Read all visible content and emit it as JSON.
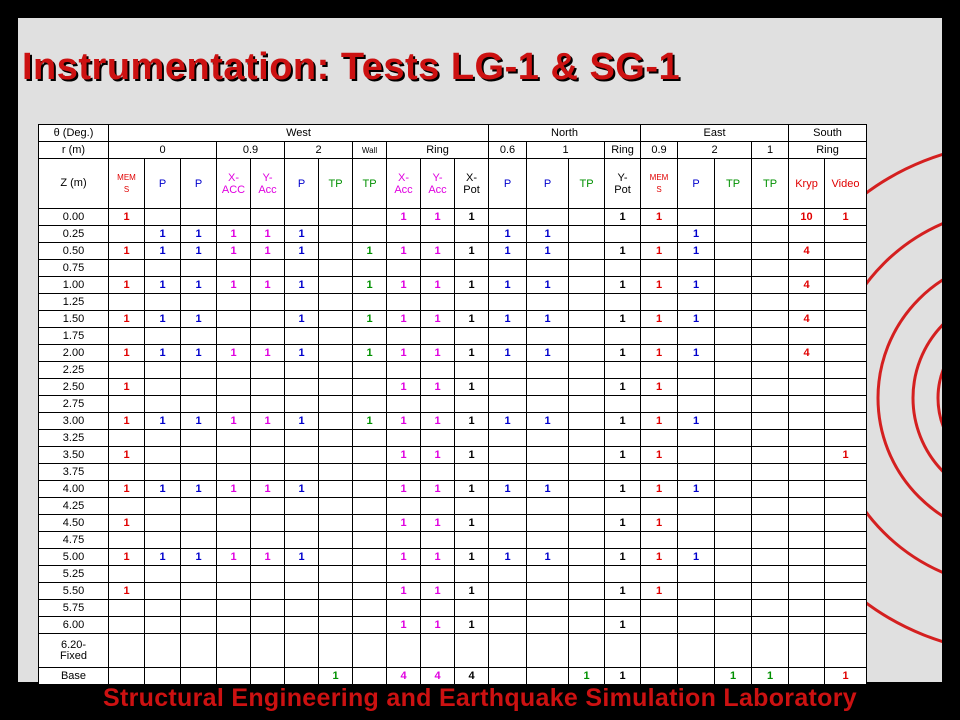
{
  "title": "Instrumentation: Tests LG-1 & SG-1",
  "footer": "Structural Engineering and Earthquake Simulation Laboratory",
  "colors": {
    "red": "#e00000",
    "blue": "#0000cc",
    "magenta": "#e000e0",
    "green": "#009000",
    "black": "#000000"
  },
  "header": {
    "theta_label": "θ (Deg.)",
    "theta_groups": [
      "West",
      "North",
      "East",
      "South"
    ],
    "r_label": "r (m)",
    "r_values": [
      "0",
      "0.9",
      "2",
      "Wall",
      "Ring",
      "0.6",
      "1",
      "Ring",
      "0.9",
      "2",
      "1",
      "Ring"
    ],
    "z_label": "Z (m)",
    "instruments": [
      {
        "t": "MEM\nS",
        "c": "red"
      },
      {
        "t": "P",
        "c": "blue"
      },
      {
        "t": "P",
        "c": "blue"
      },
      {
        "t": "X-\nACC",
        "c": "mag"
      },
      {
        "t": "Y-\nAcc",
        "c": "mag"
      },
      {
        "t": "P",
        "c": "blue"
      },
      {
        "t": "TP",
        "c": "grn"
      },
      {
        "t": "TP",
        "c": "grn"
      },
      {
        "t": "X-\nAcc",
        "c": "mag"
      },
      {
        "t": "Y-\nAcc",
        "c": "mag"
      },
      {
        "t": "X-\nPot",
        "c": "blk"
      },
      {
        "t": "P",
        "c": "blue"
      },
      {
        "t": "P",
        "c": "blue"
      },
      {
        "t": "TP",
        "c": "grn"
      },
      {
        "t": "Y-\nPot",
        "c": "blk"
      },
      {
        "t": "MEM\nS",
        "c": "red"
      },
      {
        "t": "P",
        "c": "blue"
      },
      {
        "t": "TP",
        "c": "grn"
      },
      {
        "t": "TP",
        "c": "grn"
      },
      {
        "t": "Kryp",
        "c": "red"
      },
      {
        "t": "Video",
        "c": "red"
      }
    ]
  },
  "rows": [
    {
      "z": "0.00",
      "v": [
        "1",
        "",
        "",
        "",
        "",
        "",
        "",
        "",
        "1",
        "1",
        "1",
        "",
        "",
        "",
        "1",
        "1",
        "",
        "",
        "",
        "10",
        "1"
      ]
    },
    {
      "z": "0.25",
      "v": [
        "",
        "1",
        "1",
        "1",
        "1",
        "1",
        "",
        "",
        "",
        "",
        "",
        "1",
        "1",
        "",
        "",
        "",
        "1",
        "",
        "",
        "",
        ""
      ]
    },
    {
      "z": "0.50",
      "v": [
        "1",
        "1",
        "1",
        "1",
        "1",
        "1",
        "",
        "1",
        "1",
        "1",
        "1",
        "1",
        "1",
        "",
        "1",
        "1",
        "1",
        "",
        "",
        "4",
        ""
      ]
    },
    {
      "z": "0.75",
      "v": [
        "",
        "",
        "",
        "",
        "",
        "",
        "",
        "",
        "",
        "",
        "",
        "",
        "",
        "",
        "",
        "",
        "",
        "",
        "",
        "",
        ""
      ]
    },
    {
      "z": "1.00",
      "v": [
        "1",
        "1",
        "1",
        "1",
        "1",
        "1",
        "",
        "1",
        "1",
        "1",
        "1",
        "1",
        "1",
        "",
        "1",
        "1",
        "1",
        "",
        "",
        "4",
        ""
      ]
    },
    {
      "z": "1.25",
      "v": [
        "",
        "",
        "",
        "",
        "",
        "",
        "",
        "",
        "",
        "",
        "",
        "",
        "",
        "",
        "",
        "",
        "",
        "",
        "",
        "",
        ""
      ]
    },
    {
      "z": "1.50",
      "v": [
        "1",
        "1",
        "1",
        "",
        "",
        "1",
        "",
        "1",
        "1",
        "1",
        "1",
        "1",
        "1",
        "",
        "1",
        "1",
        "1",
        "",
        "",
        "4",
        ""
      ]
    },
    {
      "z": "1.75",
      "v": [
        "",
        "",
        "",
        "",
        "",
        "",
        "",
        "",
        "",
        "",
        "",
        "",
        "",
        "",
        "",
        "",
        "",
        "",
        "",
        "",
        ""
      ]
    },
    {
      "z": "2.00",
      "v": [
        "1",
        "1",
        "1",
        "1",
        "1",
        "1",
        "",
        "1",
        "1",
        "1",
        "1",
        "1",
        "1",
        "",
        "1",
        "1",
        "1",
        "",
        "",
        "4",
        ""
      ]
    },
    {
      "z": "2.25",
      "v": [
        "",
        "",
        "",
        "",
        "",
        "",
        "",
        "",
        "",
        "",
        "",
        "",
        "",
        "",
        "",
        "",
        "",
        "",
        "",
        "",
        ""
      ]
    },
    {
      "z": "2.50",
      "v": [
        "1",
        "",
        "",
        "",
        "",
        "",
        "",
        "",
        "1",
        "1",
        "1",
        "",
        "",
        "",
        "1",
        "1",
        "",
        "",
        "",
        "",
        ""
      ]
    },
    {
      "z": "2.75",
      "v": [
        "",
        "",
        "",
        "",
        "",
        "",
        "",
        "",
        "",
        "",
        "",
        "",
        "",
        "",
        "",
        "",
        "",
        "",
        "",
        "",
        ""
      ]
    },
    {
      "z": "3.00",
      "v": [
        "1",
        "1",
        "1",
        "1",
        "1",
        "1",
        "",
        "1",
        "1",
        "1",
        "1",
        "1",
        "1",
        "",
        "1",
        "1",
        "1",
        "",
        "",
        "",
        ""
      ]
    },
    {
      "z": "3.25",
      "v": [
        "",
        "",
        "",
        "",
        "",
        "",
        "",
        "",
        "",
        "",
        "",
        "",
        "",
        "",
        "",
        "",
        "",
        "",
        "",
        "",
        ""
      ]
    },
    {
      "z": "3.50",
      "v": [
        "1",
        "",
        "",
        "",
        "",
        "",
        "",
        "",
        "1",
        "1",
        "1",
        "",
        "",
        "",
        "1",
        "1",
        "",
        "",
        "",
        "",
        "1"
      ]
    },
    {
      "z": "3.75",
      "v": [
        "",
        "",
        "",
        "",
        "",
        "",
        "",
        "",
        "",
        "",
        "",
        "",
        "",
        "",
        "",
        "",
        "",
        "",
        "",
        "",
        ""
      ]
    },
    {
      "z": "4.00",
      "v": [
        "1",
        "1",
        "1",
        "1",
        "1",
        "1",
        "",
        "",
        "1",
        "1",
        "1",
        "1",
        "1",
        "",
        "1",
        "1",
        "1",
        "",
        "",
        "",
        ""
      ]
    },
    {
      "z": "4.25",
      "v": [
        "",
        "",
        "",
        "",
        "",
        "",
        "",
        "",
        "",
        "",
        "",
        "",
        "",
        "",
        "",
        "",
        "",
        "",
        "",
        "",
        ""
      ]
    },
    {
      "z": "4.50",
      "v": [
        "1",
        "",
        "",
        "",
        "",
        "",
        "",
        "",
        "1",
        "1",
        "1",
        "",
        "",
        "",
        "1",
        "1",
        "",
        "",
        "",
        "",
        ""
      ]
    },
    {
      "z": "4.75",
      "v": [
        "",
        "",
        "",
        "",
        "",
        "",
        "",
        "",
        "",
        "",
        "",
        "",
        "",
        "",
        "",
        "",
        "",
        "",
        "",
        "",
        ""
      ]
    },
    {
      "z": "5.00",
      "v": [
        "1",
        "1",
        "1",
        "1",
        "1",
        "1",
        "",
        "",
        "1",
        "1",
        "1",
        "1",
        "1",
        "",
        "1",
        "1",
        "1",
        "",
        "",
        "",
        ""
      ]
    },
    {
      "z": "5.25",
      "v": [
        "",
        "",
        "",
        "",
        "",
        "",
        "",
        "",
        "",
        "",
        "",
        "",
        "",
        "",
        "",
        "",
        "",
        "",
        "",
        "",
        ""
      ]
    },
    {
      "z": "5.50",
      "v": [
        "1",
        "",
        "",
        "",
        "",
        "",
        "",
        "",
        "1",
        "1",
        "1",
        "",
        "",
        "",
        "1",
        "1",
        "",
        "",
        "",
        "",
        ""
      ]
    },
    {
      "z": "5.75",
      "v": [
        "",
        "",
        "",
        "",
        "",
        "",
        "",
        "",
        "",
        "",
        "",
        "",
        "",
        "",
        "",
        "",
        "",
        "",
        "",
        "",
        ""
      ]
    },
    {
      "z": "6.00",
      "v": [
        "",
        "",
        "",
        "",
        "",
        "",
        "",
        "",
        "1",
        "1",
        "1",
        "",
        "",
        "",
        "1",
        "",
        "",
        "",
        "",
        "",
        ""
      ]
    },
    {
      "z": "6.20-\nFixed",
      "v": [
        "",
        "",
        "",
        "",
        "",
        "",
        "",
        "",
        "",
        "",
        "",
        "",
        "",
        "",
        "",
        "",
        "",
        "",
        "",
        "",
        ""
      ]
    },
    {
      "z": "Base",
      "v": [
        "",
        "",
        "",
        "",
        "",
        "",
        "1",
        "",
        "4",
        "4",
        "4",
        "",
        "",
        "1",
        "1",
        "",
        "",
        "1",
        "1",
        "",
        "1"
      ]
    }
  ]
}
